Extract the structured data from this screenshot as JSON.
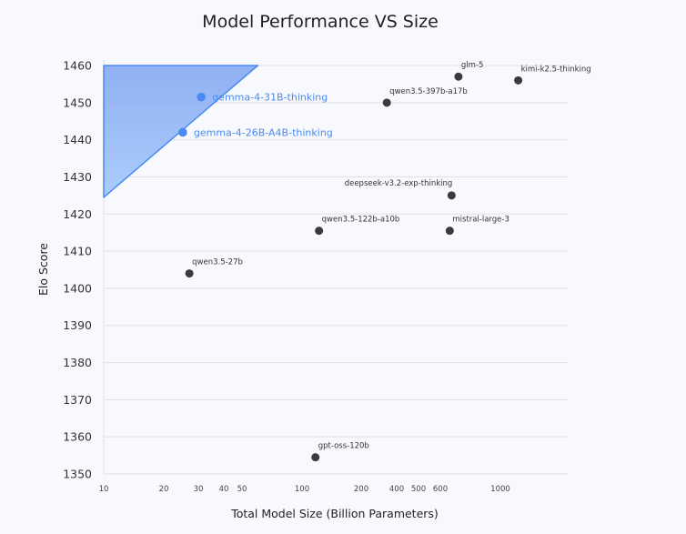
{
  "chart_data": {
    "type": "scatter",
    "title": "Model Performance VS Size",
    "xlabel": "Total Model Size (Billion Parameters)",
    "ylabel": "Elo Score",
    "x_scale": "log",
    "x_ticks": [
      10,
      20,
      30,
      40,
      50,
      100,
      200,
      400,
      500,
      600,
      1000
    ],
    "y_ticks": [
      1350,
      1360,
      1370,
      1380,
      1390,
      1400,
      1410,
      1420,
      1430,
      1440,
      1450,
      1460
    ],
    "ylim": [
      1350,
      1460
    ],
    "grid": "horizontal",
    "highlight_color": "#4a8af4",
    "point_color": "#3a3b40",
    "highlight_region": {
      "vertices": [
        [
          10,
          1460
        ],
        [
          60,
          1460
        ],
        [
          10,
          1424.5
        ]
      ],
      "color": "#4a8af4"
    },
    "points": [
      {
        "label": "gemma-4-31B-thinking",
        "x": 31,
        "y": 1451.5,
        "highlight": true
      },
      {
        "label": "gemma-4-26B-A4B-thinking",
        "x": 25,
        "y": 1442,
        "highlight": true
      },
      {
        "label": "glm-5",
        "x": 700,
        "y": 1457
      },
      {
        "label": "kimi-k2.5-thinking",
        "x": 1230,
        "y": 1456
      },
      {
        "label": "qwen3.5-397b-a17b",
        "x": 330,
        "y": 1450
      },
      {
        "label": "deepseek-v3.2-exp-thinking",
        "x": 660,
        "y": 1425
      },
      {
        "label": "qwen3.5-122b-a10b",
        "x": 122,
        "y": 1415.5
      },
      {
        "label": "mistral-large-3",
        "x": 650,
        "y": 1415.5
      },
      {
        "label": "qwen3.5-27b",
        "x": 27,
        "y": 1404
      },
      {
        "label": "gpt-oss-120b",
        "x": 117,
        "y": 1354.5
      }
    ]
  }
}
